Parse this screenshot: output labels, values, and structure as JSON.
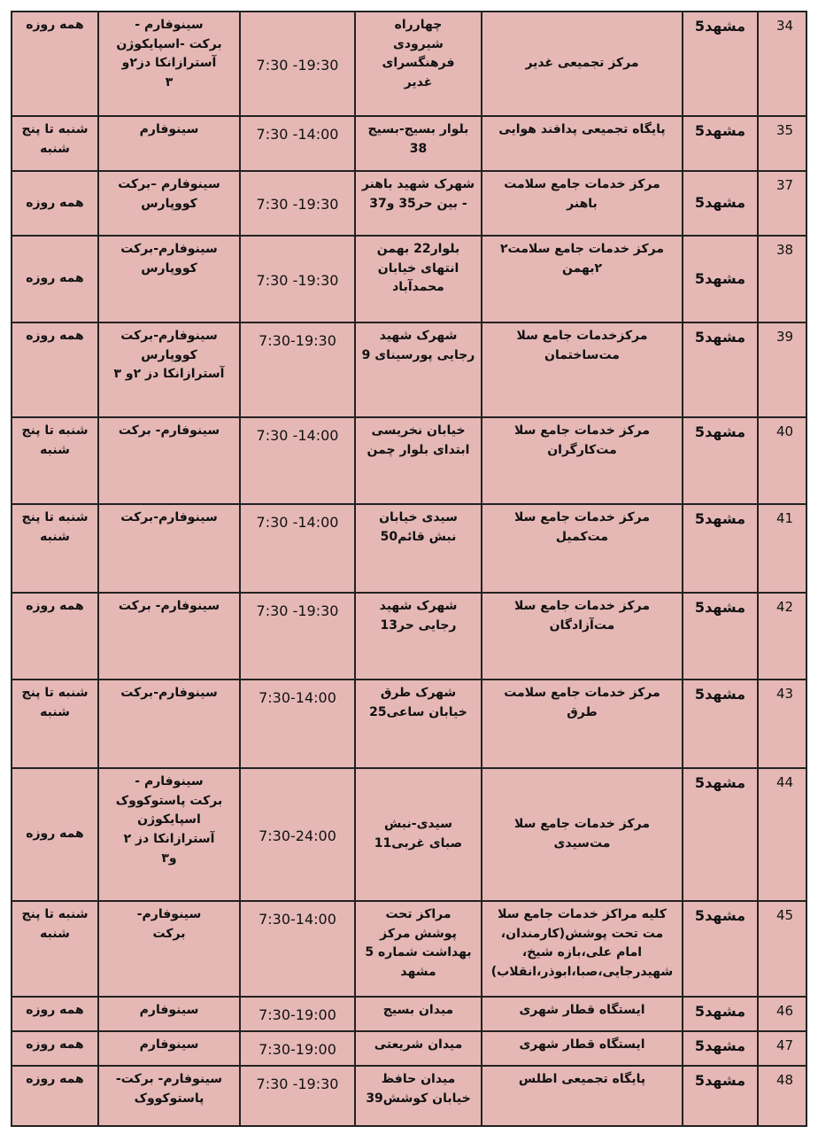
{
  "rows": [
    {
      "num": "34",
      "city": "مشهد5",
      "center": "مرکز تجمیعی غدیر",
      "address": "چهارراه\nشیرودی\nفرهنگسرای\nغدیر",
      "hours": "7:30 -19:30",
      "vaccine": "سینوفارم -\nبرکت  -اسپایکوژن\nآسترازانکا دز۲و\n۳",
      "days": "همه روزه"
    },
    {
      "num": "35",
      "city": "مشهد5",
      "center": "پایگاه تجمیعی پدافند هوایی",
      "address": "بلوار بسیج-بسیج\n38",
      "hours": "7:30 -14:00",
      "vaccine": "سینوفارم",
      "days": "شنبه تا پنج\nشنبه"
    },
    {
      "num": "37",
      "city": "مشهد5",
      "center": "مرکز خدمات جامع  سلامت\nباهنر",
      "address": "شهرک شهید باهنر\n- بین حر35 و37",
      "hours": "7:30 -19:30",
      "vaccine": "سینوفارم –برکت\nکووپارس",
      "days": "همه روزه"
    },
    {
      "num": "38",
      "city": "مشهد5",
      "center": "مرکز خدمات جامع سلامت۲\n۲بهمن",
      "address": "بلوار22 بهمن\nانتهای خیابان\nمحمدآباد",
      "hours": "7:30 -19:30",
      "vaccine": "سینوفارم-برکت\nکووپارس",
      "days": "همه روزه"
    },
    {
      "num": "39",
      "city": "مشهد5",
      "center": "مرکزخدمات جامع  سلا\nمت‌ساختمان",
      "address": "شهرک شهید\nرجایی پورسینای 9",
      "hours": "7:30-19:30",
      "vaccine": "سینوفارم-برکت\nکووپارس\nآسترازانکا دز ۲و ۳",
      "days": "همه روزه"
    },
    {
      "num": "40",
      "city": "مشهد5",
      "center": "مرکز خدمات جامع  سلا\nمت‌کارگران",
      "address": "خیابان نخریسی\nابتدای بلوار چمن",
      "hours": "7:30 -14:00",
      "vaccine": "سینوفارم- برکت",
      "days": "شنبه تا پنج\nشنبه"
    },
    {
      "num": "41",
      "city": "مشهد5",
      "center": "مرکز خدمات جامع  سلا\nمت‌کمیل",
      "address": "سیدی خیابان\nنبش قائم50",
      "hours": "7:30 -14:00",
      "vaccine": "سینوفارم-برکت",
      "days": "شنبه تا پنج\nشنبه"
    },
    {
      "num": "42",
      "city": "مشهد5",
      "center": "مرکز خدمات جامع  سلا\nمت‌آزادگان",
      "address": "شهرک شهید\nرجایی حر13",
      "hours": "7:30 -19:30",
      "vaccine": "سینوفارم- برکت",
      "days": "همه روزه"
    },
    {
      "num": "43",
      "city": "مشهد5",
      "center": "مرکز خدمات جامع  سلامت\nطرق",
      "address": "شهرک طرق\nخیابان ساعی25",
      "hours": "7:30-14:00",
      "vaccine": "سینوفارم-برکت",
      "days": "شنبه تا پنج\nشنبه"
    },
    {
      "num": "44",
      "city": "مشهد5",
      "center": "مرکز خدمات  جامع سلا\nمت‌سیدی",
      "address": "سیدی-نبش\nصبای غربی11",
      "hours": "7:30-24:00",
      "vaccine": "سینوفارم -\nبرکت پاستوکووک\nاسپایکوژن\nآسترازانکا دز ۲\nو۳",
      "days": "همه روزه"
    },
    {
      "num": "45",
      "city": "مشهد5",
      "center": "کلیه مراکز خدمات جامع سلا\nمت تحت پوشش(کارمندان،\nامام علی،بازه شیخ،\nشهیدرجایی،صبا،ابوذر،انقلاب)",
      "address": "مراکز تحت\nپوشش مرکز\nبهداشت شماره 5\nمشهد",
      "hours": "7:30-14:00",
      "vaccine": "سینوفارم-\nبرکت",
      "days": "شنبه تا پنج\nشنبه"
    },
    {
      "num": "46",
      "city": "مشهد5",
      "center": "ایستگاه قطار شهری",
      "address": "میدان بسیج",
      "hours": "7:30-19:00",
      "vaccine": "سینوفارم",
      "days": "همه روزه"
    },
    {
      "num": "47",
      "city": "مشهد5",
      "center": "ایستگاه قطار شهری",
      "address": "میدان شریعتی",
      "hours": "7:30-19:00",
      "vaccine": "سینوفارم",
      "days": "همه روزه"
    },
    {
      "num": "48",
      "city": "مشهد5",
      "center": "پایگاه تجمیعی اطلس",
      "address": "میدان حافظ\nخیابان کوشش39",
      "hours": "7:30 -19:30",
      "vaccine": "سینوفارم- برکت-\nپاستوکووک",
      "days": "همه روزه"
    }
  ],
  "colors": {
    "cell_background": "#e5b8b6",
    "border": "#222222"
  }
}
